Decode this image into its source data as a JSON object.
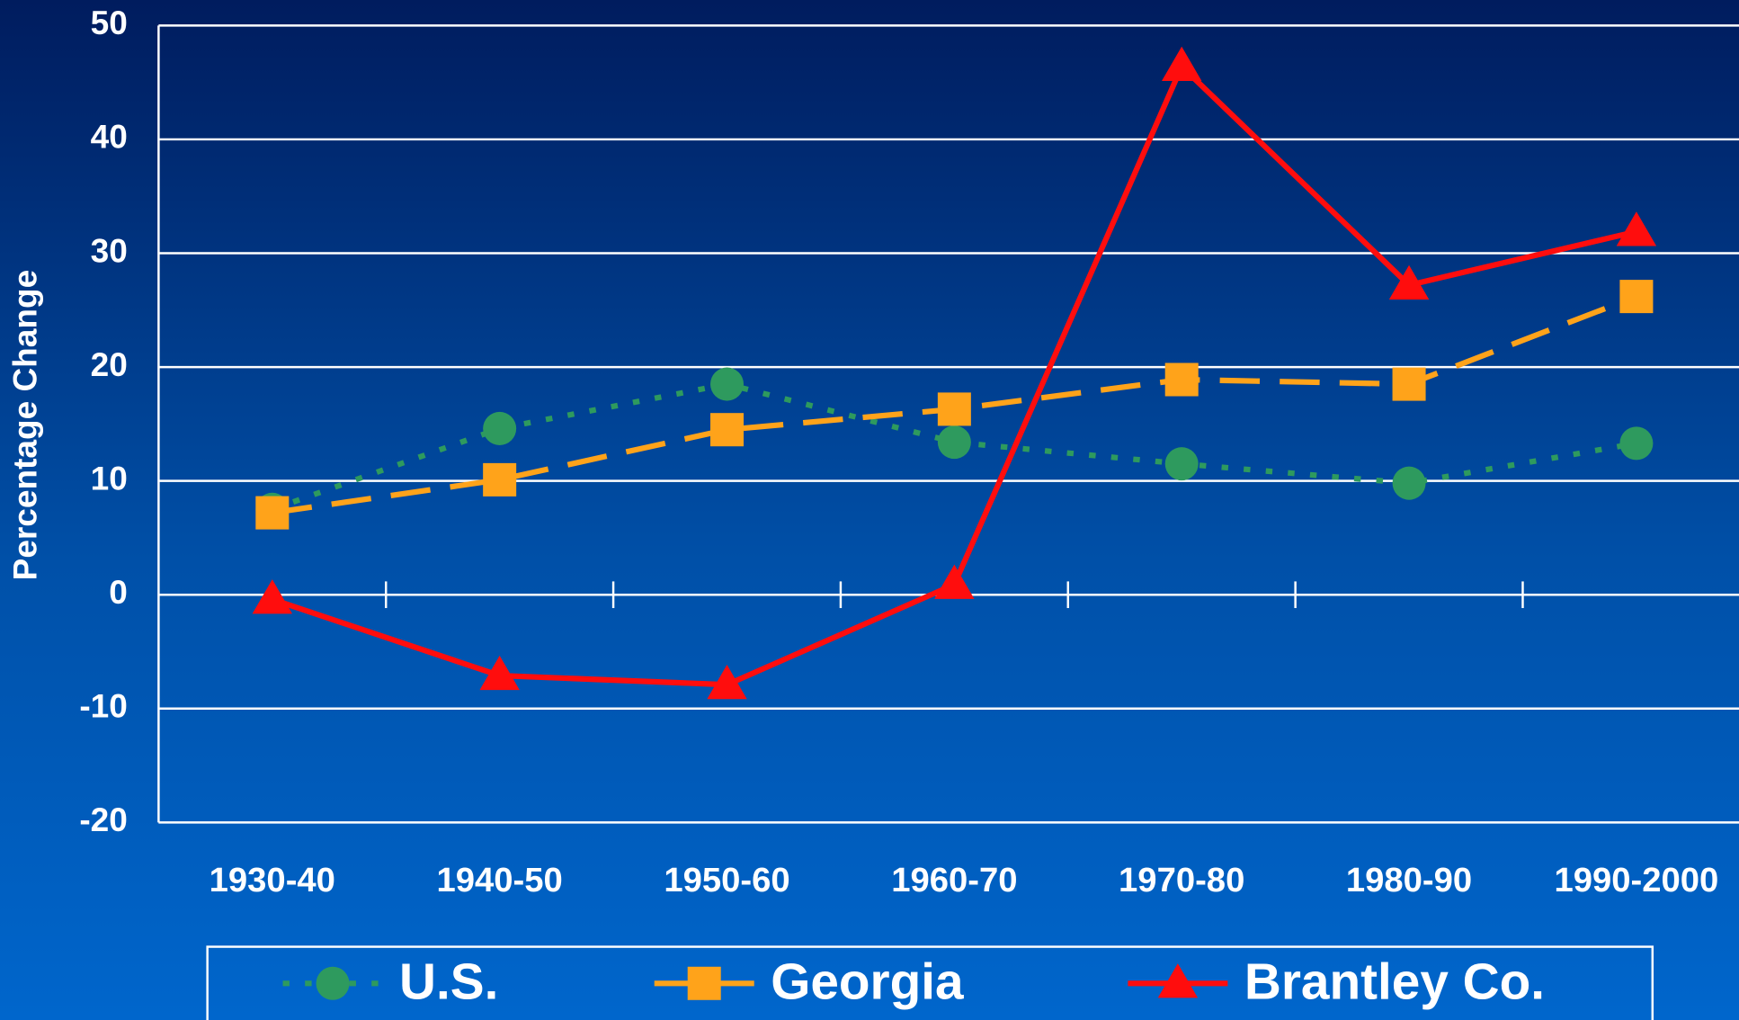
{
  "chart_data": {
    "type": "line",
    "y_label": "Percentage Change",
    "categories": [
      "1930-40",
      "1940-50",
      "1950-60",
      "1960-70",
      "1970-80",
      "1980-90",
      "1990-2000"
    ],
    "series": [
      {
        "name": "U.S.",
        "color": "#2e9a5e",
        "line_style": "dotted",
        "marker": "circle",
        "values": [
          7.5,
          14.6,
          18.5,
          13.4,
          11.5,
          9.8,
          13.3
        ]
      },
      {
        "name": "Georgia",
        "color": "#ffa31a",
        "line_style": "dashed",
        "marker": "square",
        "values": [
          7.2,
          10.1,
          14.5,
          16.3,
          18.9,
          18.5,
          26.2
        ]
      },
      {
        "name": "Brantley Co.",
        "color": "#ff0d0d",
        "line_style": "solid",
        "marker": "triangle",
        "values": [
          -0.4,
          -7.1,
          -7.9,
          0.9,
          46.4,
          27.2,
          31.9
        ]
      }
    ],
    "ylim": [
      -20,
      50
    ],
    "yticks": [
      -20,
      -10,
      0,
      10,
      20,
      30,
      40,
      50
    ],
    "grid": true,
    "legend": "bottom"
  }
}
